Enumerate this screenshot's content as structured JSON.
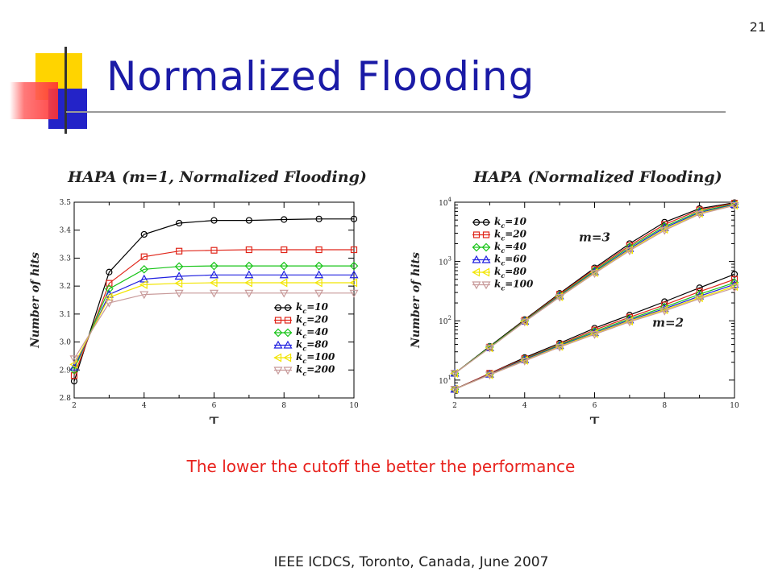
{
  "slide": {
    "page_number": "21",
    "title": "Normalized Flooding",
    "caption": "The lower the cutoff the better the performance",
    "footer": "IEEE ICDCS, Toronto, Canada, June 2007"
  },
  "colors": {
    "title": "#1a1aa6",
    "caption": "#e8231e",
    "series": [
      "#000000",
      "#e0261a",
      "#18c418",
      "#2020e0",
      "#f2e500",
      "#c89a9a"
    ]
  },
  "chart_data": [
    {
      "type": "line",
      "title": "HAPA (m=1, Normalized Flooding)",
      "xlabel": "τ",
      "ylabel": "Number of hits",
      "xlim": [
        2,
        10
      ],
      "ylim": [
        2.8,
        3.5
      ],
      "xticks": [
        "2",
        "4",
        "6",
        "8",
        "10"
      ],
      "yticks": [
        "2.8",
        "2.9",
        "3.0",
        "3.1",
        "3.2",
        "3.3",
        "3.4",
        "3.5"
      ],
      "legend_position": "lower-right",
      "x": [
        2,
        3,
        4,
        5,
        6,
        7,
        8,
        9,
        10
      ],
      "series": [
        {
          "name": "k_c=10",
          "marker": "circle",
          "values": [
            2.86,
            3.25,
            3.385,
            3.425,
            3.435,
            3.435,
            3.438,
            3.44,
            3.44
          ]
        },
        {
          "name": "k_c=20",
          "marker": "square",
          "values": [
            2.88,
            3.21,
            3.305,
            3.325,
            3.328,
            3.33,
            3.33,
            3.33,
            3.33
          ]
        },
        {
          "name": "k_c=40",
          "marker": "diamond",
          "values": [
            2.9,
            3.19,
            3.26,
            3.27,
            3.272,
            3.272,
            3.272,
            3.272,
            3.272
          ]
        },
        {
          "name": "k_c=80",
          "marker": "triangle-up",
          "values": [
            2.91,
            3.17,
            3.225,
            3.235,
            3.24,
            3.24,
            3.24,
            3.24,
            3.24
          ]
        },
        {
          "name": "k_c=100",
          "marker": "triangle-left",
          "values": [
            2.92,
            3.16,
            3.205,
            3.21,
            3.212,
            3.212,
            3.212,
            3.212,
            3.212
          ]
        },
        {
          "name": "k_c=200",
          "marker": "triangle-down",
          "values": [
            2.94,
            3.14,
            3.17,
            3.175,
            3.175,
            3.175,
            3.175,
            3.175,
            3.175
          ]
        }
      ]
    },
    {
      "type": "line",
      "title": "HAPA (Normalized Flooding)",
      "xlabel": "τ",
      "ylabel": "Number of hits",
      "xlim": [
        2,
        10
      ],
      "ylim": [
        5,
        10000
      ],
      "yscale": "log",
      "xticks": [
        "2",
        "4",
        "6",
        "8",
        "10"
      ],
      "yticks": [
        {
          "base": "10",
          "exp": "1",
          "value": 10
        },
        {
          "base": "10",
          "exp": "2",
          "value": 100
        },
        {
          "base": "10",
          "exp": "3",
          "value": 1000
        },
        {
          "base": "10",
          "exp": "4",
          "value": 10000
        }
      ],
      "legend_position": "top-left",
      "annotations": [
        {
          "text": "m=3",
          "x": 6.0,
          "y": 2200
        },
        {
          "text": "m=2",
          "x": 8.1,
          "y": 80
        }
      ],
      "x": [
        2,
        3,
        4,
        5,
        6,
        7,
        8,
        9,
        10
      ],
      "series": [
        {
          "name": "k_c=10",
          "marker": "circle",
          "group": "m=3",
          "values": [
            13,
            37,
            105,
            290,
            780,
            2000,
            4600,
            7800,
            9800
          ]
        },
        {
          "name": "k_c=20",
          "marker": "square",
          "group": "m=3",
          "values": [
            13,
            36,
            102,
            280,
            740,
            1850,
            4200,
            7400,
            9600
          ]
        },
        {
          "name": "k_c=40",
          "marker": "diamond",
          "group": "m=3",
          "values": [
            13,
            36,
            100,
            270,
            700,
            1750,
            3900,
            7000,
            9300
          ]
        },
        {
          "name": "k_c=60",
          "marker": "triangle-up",
          "group": "m=3",
          "values": [
            13,
            35,
            98,
            262,
            670,
            1650,
            3700,
            6700,
            9100
          ]
        },
        {
          "name": "k_c=80",
          "marker": "triangle-left",
          "group": "m=3",
          "values": [
            13,
            35,
            97,
            255,
            650,
            1580,
            3500,
            6500,
            8900
          ]
        },
        {
          "name": "k_c=100",
          "marker": "triangle-down",
          "group": "m=3",
          "values": [
            13,
            35,
            96,
            250,
            630,
            1520,
            3350,
            6300,
            8800
          ]
        },
        {
          "name": "k_c=10",
          "marker": "circle",
          "group": "m=2",
          "values": [
            7,
            13,
            24,
            42,
            75,
            125,
            210,
            360,
            610
          ]
        },
        {
          "name": "k_c=20",
          "marker": "square",
          "group": "m=2",
          "values": [
            7,
            13,
            23,
            40,
            70,
            115,
            185,
            310,
            500
          ]
        },
        {
          "name": "k_c=40",
          "marker": "diamond",
          "group": "m=2",
          "values": [
            7,
            12.5,
            22.5,
            39,
            66,
            108,
            170,
            280,
            440
          ]
        },
        {
          "name": "k_c=60",
          "marker": "triangle-up",
          "group": "m=2",
          "values": [
            7,
            12.5,
            22,
            38,
            63,
            103,
            160,
            260,
            410
          ]
        },
        {
          "name": "k_c=80",
          "marker": "triangle-left",
          "group": "m=2",
          "values": [
            7,
            12.3,
            21.5,
            37,
            61,
            99,
            153,
            245,
            380
          ]
        },
        {
          "name": "k_c=100",
          "marker": "triangle-down",
          "group": "m=2",
          "values": [
            7,
            12.2,
            21,
            36,
            59,
            96,
            147,
            235,
            360
          ]
        }
      ]
    }
  ]
}
